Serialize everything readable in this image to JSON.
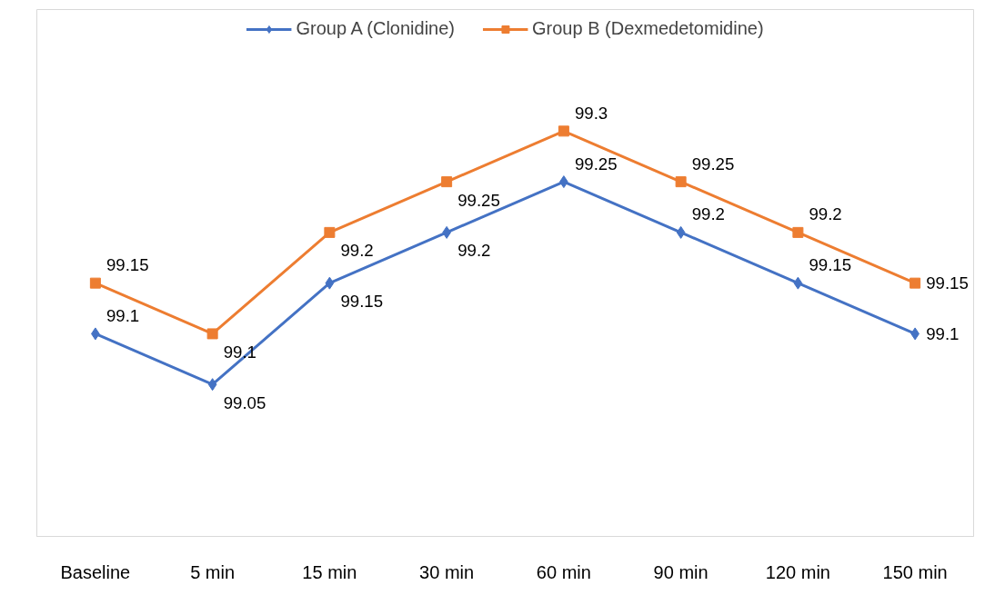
{
  "chart_data": {
    "type": "line",
    "categories": [
      "Baseline",
      "5 min",
      "15 min",
      "30 min",
      "60 min",
      "90 min",
      "120 min",
      "150 min"
    ],
    "series": [
      {
        "name": "Group A (Clonidine)",
        "color": "#4472c4",
        "marker": "diamond",
        "values": [
          99.1,
          99.05,
          99.15,
          99.2,
          99.25,
          99.2,
          99.15,
          99.1
        ]
      },
      {
        "name": "Group B (Dexmedetomidine)",
        "color": "#ed7d31",
        "marker": "square",
        "values": [
          99.15,
          99.1,
          99.2,
          99.25,
          99.3,
          99.25,
          99.2,
          99.15
        ]
      }
    ],
    "ylim": [
      98.9,
      99.42
    ],
    "data_labels": true,
    "grid": false,
    "legend": "top",
    "tick_labels": "x"
  }
}
